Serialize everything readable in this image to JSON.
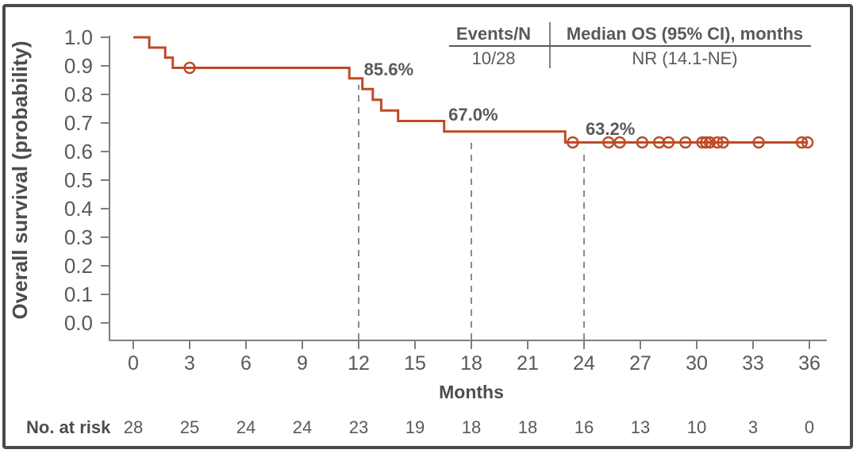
{
  "colors": {
    "curve": "#BE4A26",
    "axis": "#7f7f7f",
    "text": "#595959",
    "bold_text": "#4d4d4d",
    "dashed": "#8a8a8a",
    "frame": "#4a4a4a",
    "background": "#ffffff"
  },
  "summary_table": {
    "col1_header": "Events/N",
    "col2_header": "Median OS (95% CI), months",
    "col1_value": "10/28",
    "col2_value": "NR (14.1-NE)"
  },
  "chart_data": {
    "type": "line",
    "subtype": "kaplan_meier_step_curve",
    "title": "",
    "xlabel": "Months",
    "ylabel": "Overall survival (probability)",
    "xlim": [
      0,
      36
    ],
    "ylim": [
      0.0,
      1.0
    ],
    "xticks": [
      0,
      3,
      6,
      9,
      12,
      15,
      18,
      21,
      24,
      27,
      30,
      33,
      36
    ],
    "yticks": [
      1.0,
      0.9,
      0.8,
      0.7,
      0.6,
      0.5,
      0.4,
      0.3,
      0.2,
      0.1,
      0.0
    ],
    "grid": false,
    "legend": "none",
    "series": [
      {
        "name": "Overall survival",
        "events_n": "10/28",
        "median_os": "NR (14.1-NE)",
        "step_points": [
          [
            0,
            1.0
          ],
          [
            0.85,
            1.0
          ],
          [
            0.85,
            0.964
          ],
          [
            1.7,
            0.964
          ],
          [
            1.7,
            0.929
          ],
          [
            2.1,
            0.929
          ],
          [
            2.1,
            0.893
          ],
          [
            11.5,
            0.893
          ],
          [
            11.5,
            0.856
          ],
          [
            12.2,
            0.856
          ],
          [
            12.2,
            0.819
          ],
          [
            12.75,
            0.819
          ],
          [
            12.75,
            0.781
          ],
          [
            13.2,
            0.781
          ],
          [
            13.2,
            0.744
          ],
          [
            14.1,
            0.744
          ],
          [
            14.1,
            0.707
          ],
          [
            16.55,
            0.707
          ],
          [
            16.55,
            0.67
          ],
          [
            23.0,
            0.67
          ],
          [
            23.0,
            0.632
          ],
          [
            35.9,
            0.632
          ]
        ],
        "censor_marks": [
          [
            3.0,
            0.893
          ],
          [
            23.4,
            0.632
          ],
          [
            25.3,
            0.632
          ],
          [
            25.9,
            0.632
          ],
          [
            27.1,
            0.632
          ],
          [
            28.0,
            0.632
          ],
          [
            28.5,
            0.632
          ],
          [
            29.4,
            0.632
          ],
          [
            30.3,
            0.632
          ],
          [
            30.5,
            0.632
          ],
          [
            30.7,
            0.632
          ],
          [
            31.1,
            0.632
          ],
          [
            31.4,
            0.632
          ],
          [
            33.3,
            0.632
          ],
          [
            35.6,
            0.632
          ],
          [
            35.9,
            0.632
          ]
        ]
      }
    ],
    "reference_lines": [
      {
        "x": 12,
        "top_p": 0.856
      },
      {
        "x": 18,
        "top_p": 0.67
      },
      {
        "x": 24,
        "top_p": 0.632
      }
    ],
    "annotations": [
      {
        "text": "85.6%",
        "month": 13.6,
        "p": 0.867
      },
      {
        "text": "67.0%",
        "month": 18.1,
        "p": 0.708
      },
      {
        "text": "63.2%",
        "month": 25.4,
        "p": 0.658
      }
    ],
    "risk_table": {
      "label": "No. at risk",
      "times": [
        0,
        3,
        6,
        9,
        12,
        15,
        18,
        21,
        24,
        27,
        30,
        33,
        36
      ],
      "counts": [
        28,
        25,
        24,
        24,
        23,
        19,
        18,
        18,
        16,
        13,
        10,
        3,
        0
      ]
    }
  }
}
